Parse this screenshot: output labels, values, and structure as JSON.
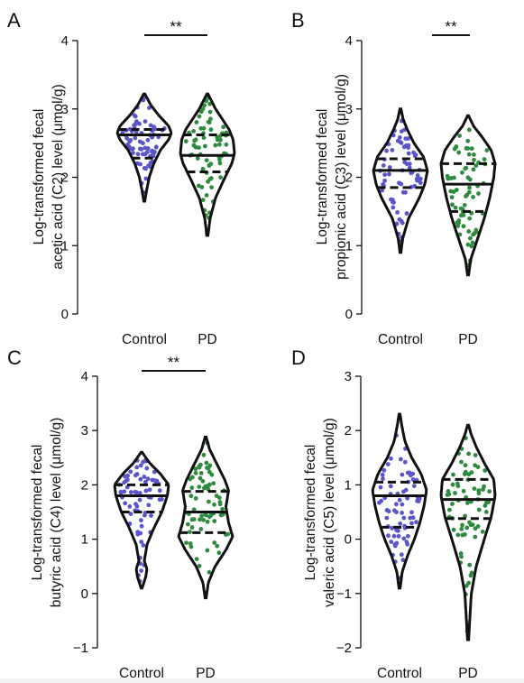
{
  "colors": {
    "control_dots": "#5a55c8",
    "pd_dots": "#2e8b3e",
    "outline": "#111111"
  },
  "chart_data": [
    {
      "type": "violin",
      "panel_letter": "A",
      "ylabel_line1": "Log-transformed fecal",
      "ylabel_line2": "acetic acid (C2) level (μmol/g)",
      "categories": [
        "Control",
        "PD"
      ],
      "ylim": [
        0,
        4
      ],
      "yticks": [
        0,
        1,
        2,
        3,
        4
      ],
      "significance": {
        "label": "**",
        "between": [
          "Control",
          "PD"
        ]
      },
      "groups": [
        {
          "name": "Control",
          "min": 1.65,
          "max": 3.22,
          "q1": 2.28,
          "median": 2.62,
          "q3": 2.7,
          "profile": [
            [
              1.65,
              0.02
            ],
            [
              1.8,
              0.08
            ],
            [
              2.0,
              0.18
            ],
            [
              2.2,
              0.35
            ],
            [
              2.4,
              0.6
            ],
            [
              2.55,
              0.9
            ],
            [
              2.65,
              1.0
            ],
            [
              2.75,
              0.9
            ],
            [
              2.9,
              0.55
            ],
            [
              3.05,
              0.25
            ],
            [
              3.22,
              0.02
            ]
          ]
        },
        {
          "name": "PD",
          "min": 1.15,
          "max": 3.22,
          "q1": 2.08,
          "median": 2.32,
          "q3": 2.62,
          "profile": [
            [
              1.15,
              0.02
            ],
            [
              1.4,
              0.1
            ],
            [
              1.7,
              0.3
            ],
            [
              2.0,
              0.65
            ],
            [
              2.2,
              0.9
            ],
            [
              2.35,
              1.0
            ],
            [
              2.55,
              0.95
            ],
            [
              2.7,
              0.8
            ],
            [
              2.85,
              0.55
            ],
            [
              3.0,
              0.3
            ],
            [
              3.22,
              0.02
            ]
          ]
        }
      ]
    },
    {
      "type": "violin",
      "panel_letter": "B",
      "ylabel_line1": "Log-transformed fecal",
      "ylabel_line2": "propionic  acid (C3) level (μmol/g)",
      "categories": [
        "Control",
        "PD"
      ],
      "ylim": [
        0,
        4
      ],
      "yticks": [
        0,
        1,
        2,
        3,
        4
      ],
      "significance": {
        "label": "**",
        "between": [
          "PD",
          "right"
        ]
      },
      "groups": [
        {
          "name": "Control",
          "min": 0.9,
          "max": 3.0,
          "q1": 1.85,
          "median": 2.1,
          "q3": 2.27,
          "profile": [
            [
              0.9,
              0.02
            ],
            [
              1.1,
              0.08
            ],
            [
              1.4,
              0.3
            ],
            [
              1.7,
              0.7
            ],
            [
              1.9,
              0.9
            ],
            [
              2.1,
              1.0
            ],
            [
              2.3,
              0.85
            ],
            [
              2.5,
              0.5
            ],
            [
              2.7,
              0.25
            ],
            [
              2.85,
              0.1
            ],
            [
              3.0,
              0.02
            ]
          ]
        },
        {
          "name": "PD",
          "min": 0.57,
          "max": 2.9,
          "q1": 1.5,
          "median": 1.9,
          "q3": 2.2,
          "profile": [
            [
              0.57,
              0.02
            ],
            [
              0.8,
              0.1
            ],
            [
              1.1,
              0.35
            ],
            [
              1.4,
              0.6
            ],
            [
              1.7,
              0.8
            ],
            [
              2.0,
              0.95
            ],
            [
              2.2,
              1.0
            ],
            [
              2.4,
              0.85
            ],
            [
              2.6,
              0.5
            ],
            [
              2.75,
              0.2
            ],
            [
              2.9,
              0.02
            ]
          ]
        }
      ]
    },
    {
      "type": "violin",
      "panel_letter": "C",
      "ylabel_line1": "Log-transformed fecal",
      "ylabel_line2": "butyric  acid (C4) level (μmol/g)",
      "categories": [
        "Control",
        "PD"
      ],
      "ylim": [
        -1,
        4
      ],
      "yticks": [
        -1,
        0,
        1,
        2,
        3,
        4
      ],
      "significance": {
        "label": "**",
        "between": [
          "Control",
          "PD"
        ]
      },
      "groups": [
        {
          "name": "Control",
          "min": 0.1,
          "max": 2.6,
          "q1": 1.5,
          "median": 1.8,
          "q3": 2.0,
          "profile": [
            [
              0.1,
              0.02
            ],
            [
              0.3,
              0.15
            ],
            [
              0.45,
              0.2
            ],
            [
              0.6,
              0.1
            ],
            [
              0.9,
              0.2
            ],
            [
              1.2,
              0.45
            ],
            [
              1.5,
              0.75
            ],
            [
              1.8,
              0.95
            ],
            [
              2.0,
              1.0
            ],
            [
              2.2,
              0.7
            ],
            [
              2.4,
              0.3
            ],
            [
              2.6,
              0.02
            ]
          ]
        },
        {
          "name": "PD",
          "min": -0.08,
          "max": 2.88,
          "q1": 1.12,
          "median": 1.5,
          "q3": 1.88,
          "profile": [
            [
              -0.08,
              0.02
            ],
            [
              0.2,
              0.1
            ],
            [
              0.5,
              0.35
            ],
            [
              0.8,
              0.75
            ],
            [
              1.05,
              1.0
            ],
            [
              1.3,
              0.85
            ],
            [
              1.6,
              0.75
            ],
            [
              1.9,
              0.85
            ],
            [
              2.1,
              0.7
            ],
            [
              2.4,
              0.4
            ],
            [
              2.65,
              0.15
            ],
            [
              2.88,
              0.02
            ]
          ]
        }
      ]
    },
    {
      "type": "violin",
      "panel_letter": "D",
      "ylabel_line1": "Log-transformed fecal",
      "ylabel_line2": "valeric acid (C5) level (μmol/g)",
      "categories": [
        "Control",
        "PD"
      ],
      "ylim": [
        -2,
        3
      ],
      "yticks": [
        -2,
        -1,
        0,
        1,
        2,
        3
      ],
      "significance": null,
      "groups": [
        {
          "name": "Control",
          "min": -0.9,
          "max": 2.3,
          "q1": 0.22,
          "median": 0.8,
          "q3": 1.05,
          "profile": [
            [
              -0.9,
              0.02
            ],
            [
              -0.6,
              0.1
            ],
            [
              -0.3,
              0.3
            ],
            [
              0.0,
              0.55
            ],
            [
              0.3,
              0.75
            ],
            [
              0.6,
              0.9
            ],
            [
              0.9,
              1.0
            ],
            [
              1.2,
              0.8
            ],
            [
              1.5,
              0.45
            ],
            [
              1.8,
              0.2
            ],
            [
              2.1,
              0.08
            ],
            [
              2.3,
              0.02
            ]
          ]
        },
        {
          "name": "PD",
          "min": -1.85,
          "max": 2.1,
          "q1": 0.38,
          "median": 0.73,
          "q3": 1.1,
          "profile": [
            [
              -1.85,
              0.02
            ],
            [
              -1.5,
              0.06
            ],
            [
              -1.0,
              0.12
            ],
            [
              -0.5,
              0.3
            ],
            [
              0.0,
              0.6
            ],
            [
              0.4,
              0.85
            ],
            [
              0.8,
              1.0
            ],
            [
              1.1,
              0.95
            ],
            [
              1.4,
              0.6
            ],
            [
              1.7,
              0.3
            ],
            [
              1.95,
              0.1
            ],
            [
              2.1,
              0.02
            ]
          ]
        }
      ]
    }
  ]
}
